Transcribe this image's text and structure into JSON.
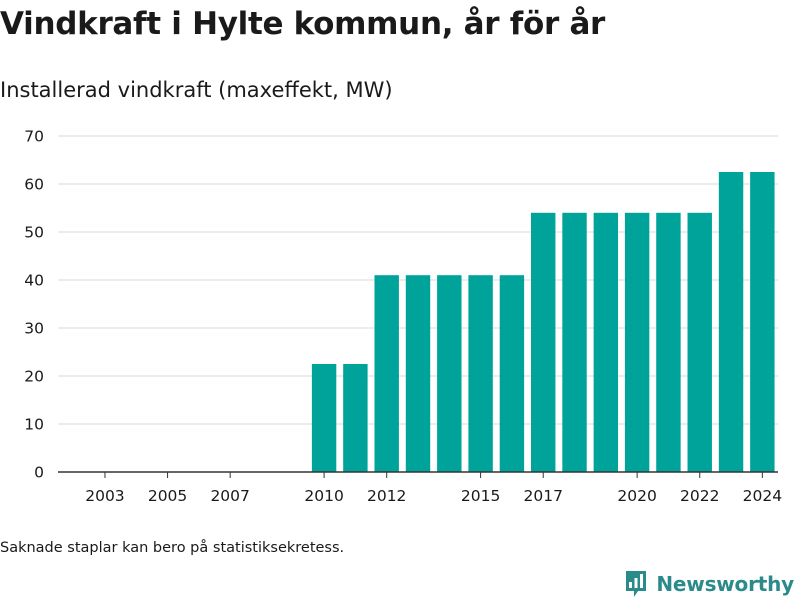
{
  "header": {
    "title": "Vindkraft i Hylte kommun, år för år",
    "subtitle": "Installerad vindkraft (maxeffekt, MW)"
  },
  "footer": {
    "note": "Saknade staplar kan bero på statistiksekretess.",
    "brand": "Newsworthy"
  },
  "colors": {
    "bar": "#00a39a",
    "grid": "#d9d9d9",
    "axis": "#333333",
    "brand": "#2b8a8a"
  },
  "chart_data": {
    "type": "bar",
    "title": "Installerad vindkraft (maxeffekt, MW)",
    "xlabel": "",
    "ylabel": "",
    "categories": [
      2002,
      2003,
      2004,
      2005,
      2006,
      2007,
      2008,
      2009,
      2010,
      2011,
      2012,
      2013,
      2014,
      2015,
      2016,
      2017,
      2018,
      2019,
      2020,
      2021,
      2022,
      2023,
      2024
    ],
    "values": [
      null,
      null,
      null,
      null,
      null,
      null,
      null,
      null,
      22.5,
      22.5,
      41,
      41,
      41,
      41,
      41,
      54,
      54,
      54,
      54,
      54,
      54,
      62.5,
      62.5
    ],
    "xticks": [
      2003,
      2005,
      2007,
      2010,
      2012,
      2015,
      2017,
      2020,
      2022,
      2024
    ],
    "ylim": [
      0,
      70
    ],
    "yticks": [
      0,
      10,
      20,
      30,
      40,
      50,
      60,
      70
    ],
    "grid": true,
    "legend": "none"
  }
}
